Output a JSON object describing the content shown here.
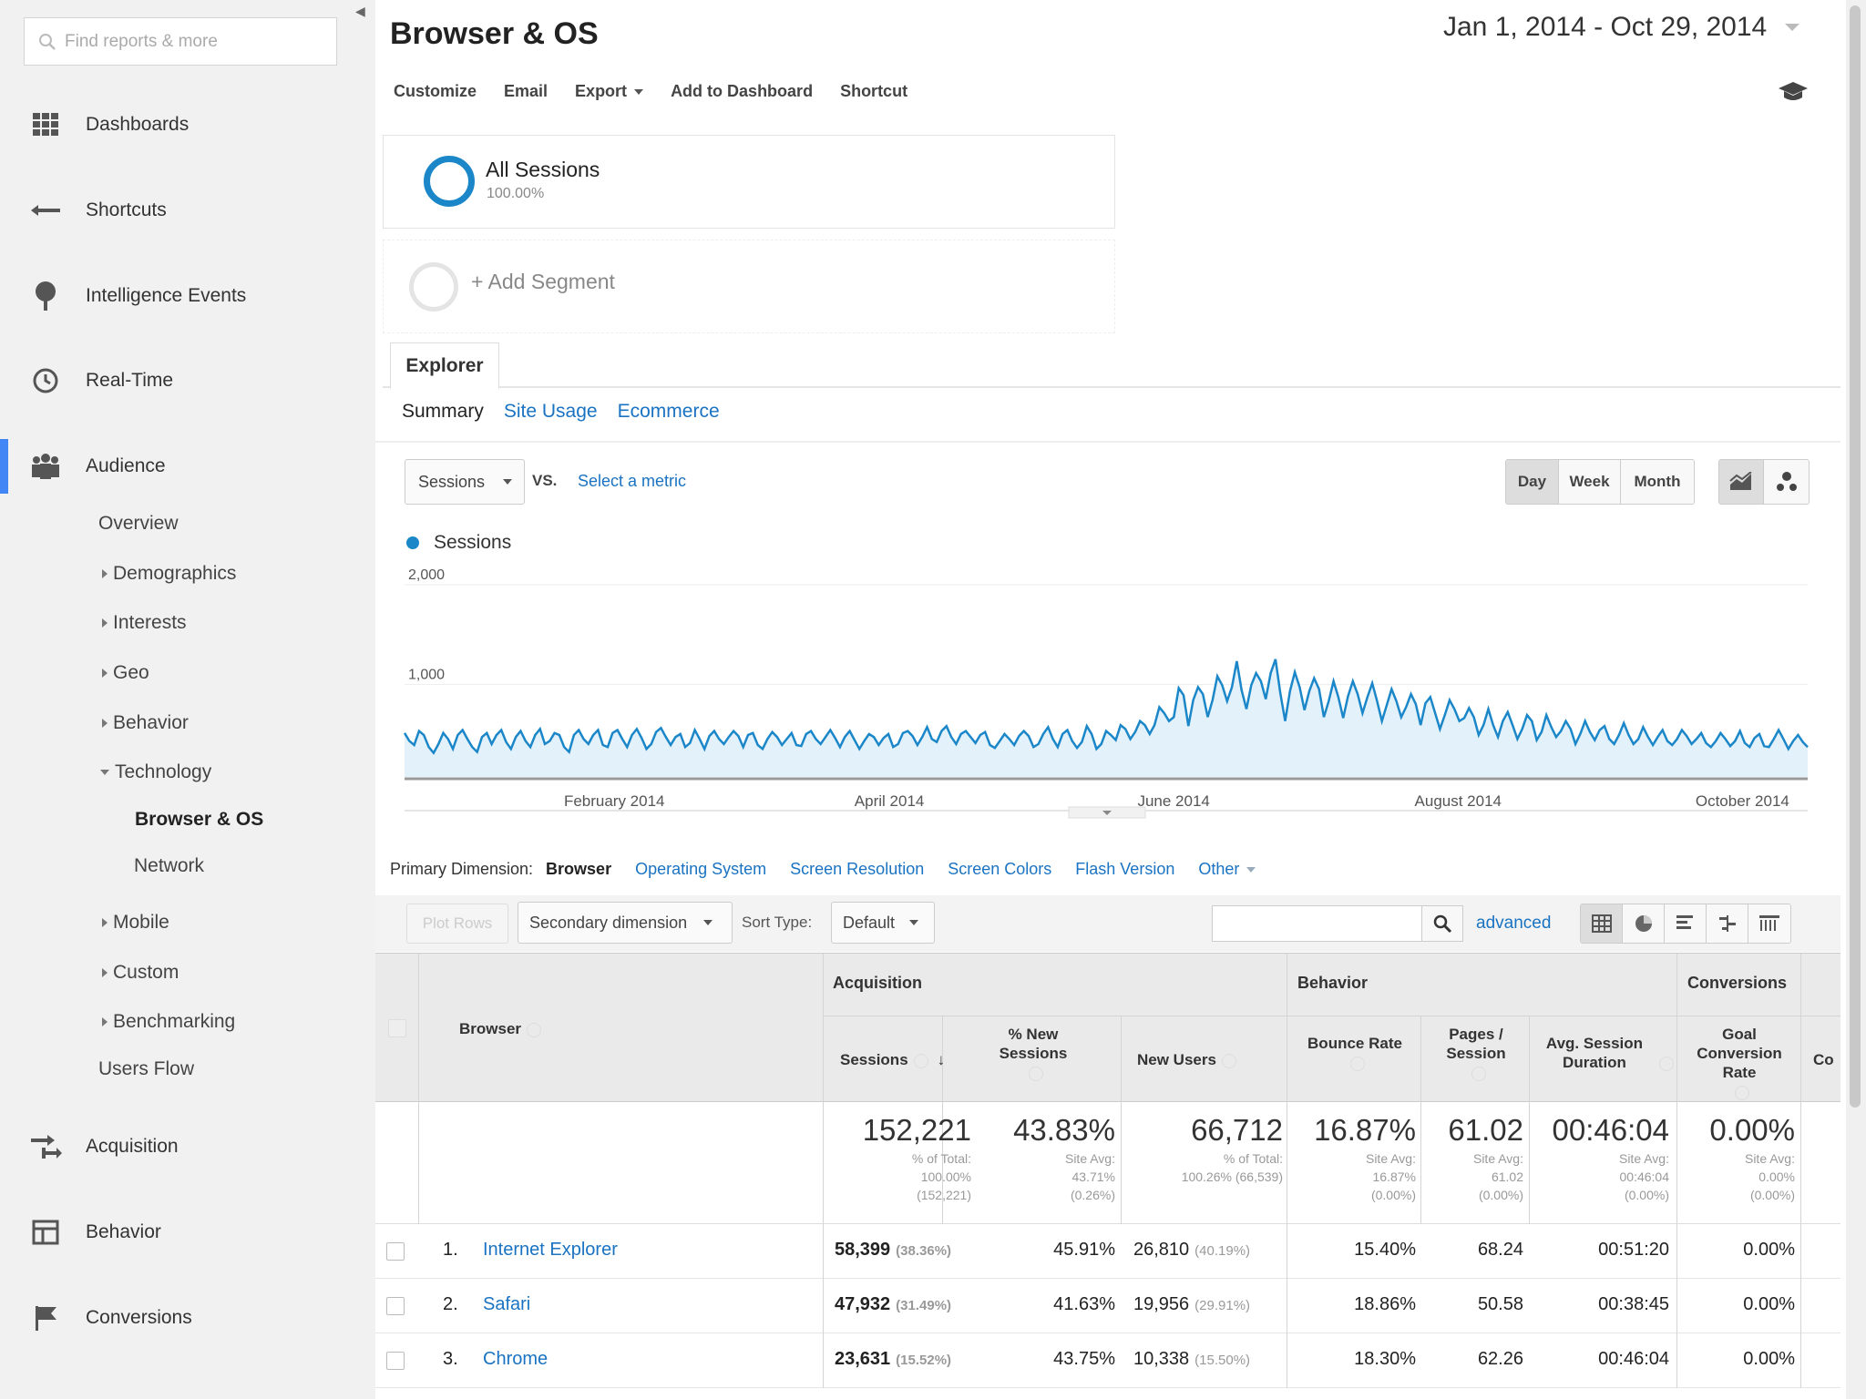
{
  "sidebar": {
    "search_placeholder": "Find reports & more",
    "nav": {
      "dashboards": "Dashboards",
      "shortcuts": "Shortcuts",
      "intelligence": "Intelligence Events",
      "realtime": "Real-Time",
      "audience": "Audience",
      "acquisition": "Acquisition",
      "behavior": "Behavior",
      "conversions": "Conversions"
    },
    "audience_items": {
      "overview": "Overview",
      "demographics": "Demographics",
      "interests": "Interests",
      "geo": "Geo",
      "behavior": "Behavior",
      "technology": "Technology",
      "browser_os": "Browser & OS",
      "network": "Network",
      "mobile": "Mobile",
      "custom": "Custom",
      "benchmarking": "Benchmarking",
      "users_flow": "Users Flow"
    }
  },
  "header": {
    "title": "Browser & OS",
    "date_range": "Jan 1, 2014 - Oct 29, 2014"
  },
  "toolbar": {
    "customize": "Customize",
    "email": "Email",
    "export": "Export",
    "add_dashboard": "Add to Dashboard",
    "shortcut": "Shortcut"
  },
  "segments": {
    "all_title": "All Sessions",
    "all_pct": "100.00%",
    "add": "+ Add Segment"
  },
  "tabs": {
    "explorer": "Explorer",
    "summary": "Summary",
    "site_usage": "Site Usage",
    "ecommerce": "Ecommerce"
  },
  "chart_controls": {
    "metric": "Sessions",
    "vs": "VS.",
    "select_metric": "Select a metric",
    "day": "Day",
    "week": "Week",
    "month": "Month"
  },
  "chart_data": {
    "type": "area",
    "series": [
      {
        "name": "Sessions",
        "color": "#1b87c9"
      }
    ],
    "y_ticks": [
      "2,000",
      "1,000"
    ],
    "ylim": [
      0,
      2000
    ],
    "x_labels": [
      "February 2014",
      "April 2014",
      "June 2014",
      "August 2014",
      "October 2014"
    ],
    "x_start": "2014-01-01",
    "x_end": "2014-10-29",
    "values": [
      440,
      360,
      320,
      460,
      420,
      300,
      240,
      330,
      440,
      380,
      280,
      420,
      470,
      380,
      300,
      250,
      400,
      440,
      330,
      420,
      470,
      350,
      280,
      400,
      460,
      360,
      300,
      420,
      480,
      330,
      360,
      440,
      420,
      300,
      250,
      420,
      470,
      380,
      330,
      420,
      470,
      320,
      300,
      440,
      470,
      380,
      300,
      420,
      480,
      390,
      280,
      330,
      450,
      490,
      400,
      320,
      400,
      430,
      300,
      340,
      470,
      380,
      280,
      410,
      460,
      380,
      330,
      400,
      460,
      410,
      300,
      420,
      440,
      320,
      280,
      380,
      450,
      400,
      320,
      380,
      440,
      320,
      310,
      430,
      460,
      380,
      330,
      400,
      470,
      390,
      300,
      400,
      460,
      370,
      280,
      360,
      430,
      400,
      320,
      390,
      430,
      300,
      330,
      440,
      460,
      410,
      320,
      400,
      500,
      380,
      350,
      460,
      510,
      400,
      330,
      430,
      460,
      400,
      340,
      420,
      450,
      320,
      290,
      360,
      430,
      380,
      320,
      410,
      460,
      410,
      300,
      330,
      430,
      500,
      380,
      300,
      430,
      470,
      360,
      290,
      350,
      510,
      430,
      280,
      330,
      460,
      420,
      370,
      520,
      480,
      380,
      450,
      560,
      520,
      430,
      520,
      700,
      640,
      560,
      600,
      890,
      820,
      510,
      770,
      900,
      830,
      600,
      770,
      1010,
      920,
      760,
      900,
      1160,
      870,
      680,
      920,
      1040,
      960,
      780,
      1040,
      1180,
      840,
      560,
      860,
      1050,
      900,
      670,
      860,
      990,
      880,
      600,
      760,
      960,
      800,
      590,
      810,
      960,
      830,
      640,
      800,
      940,
      760,
      560,
      720,
      880,
      760,
      600,
      700,
      830,
      730,
      520,
      740,
      800,
      640,
      480,
      620,
      770,
      680,
      560,
      590,
      690,
      600,
      420,
      520,
      680,
      520,
      400,
      560,
      650,
      520,
      380,
      480,
      620,
      560,
      370,
      450,
      620,
      500,
      400,
      460,
      560,
      480,
      330,
      430,
      560,
      450,
      370,
      470,
      510,
      380,
      330,
      420,
      540,
      420,
      330,
      380,
      500,
      400,
      320,
      400,
      470,
      360,
      320,
      380,
      470,
      410,
      330,
      380,
      440,
      340,
      300,
      360,
      440,
      380,
      310,
      360,
      460,
      340,
      300,
      390,
      430,
      310,
      300,
      380,
      470,
      380,
      280,
      360,
      420,
      350,
      300
    ]
  },
  "dimensions": {
    "label": "Primary Dimension:",
    "current": "Browser",
    "options": [
      "Operating System",
      "Screen Resolution",
      "Screen Colors",
      "Flash Version",
      "Other"
    ]
  },
  "table_controls": {
    "plot_rows": "Plot Rows",
    "secondary": "Secondary dimension",
    "sort_type_label": "Sort Type:",
    "sort_type": "Default",
    "advanced": "advanced"
  },
  "table": {
    "groups": {
      "acquisition": "Acquisition",
      "behavior": "Behavior",
      "conversions": "Conversions"
    },
    "headers": {
      "browser": "Browser",
      "sessions": "Sessions",
      "new_sessions": "% New Sessions",
      "new_users": "New Users",
      "bounce": "Bounce Rate",
      "pages": "Pages / Session",
      "duration": "Avg. Session Duration",
      "goal": "Goal Conversion Rate",
      "cut": "Co"
    },
    "totals": {
      "sessions": "152,221",
      "sessions_sub": "% of Total:\n100.00%\n(152,221)",
      "new_sessions": "43.83%",
      "new_sessions_sub": "Site Avg:\n43.71%\n(0.26%)",
      "new_users": "66,712",
      "new_users_sub": "% of Total:\n100.26% (66,539)",
      "bounce": "16.87%",
      "bounce_sub": "Site Avg:\n16.87%\n(0.00%)",
      "pages": "61.02",
      "pages_sub": "Site Avg:\n61.02\n(0.00%)",
      "duration": "00:46:04",
      "duration_sub": "Site Avg:\n00:46:04\n(0.00%)",
      "goal": "0.00%",
      "goal_sub": "Site Avg:\n0.00%\n(0.00%)"
    },
    "rows": [
      {
        "num": "1.",
        "browser": "Internet Explorer",
        "sessions": "58,399",
        "sessions_pct": "(38.36%)",
        "new_sessions": "45.91%",
        "new_users": "26,810",
        "new_users_pct": "(40.19%)",
        "bounce": "15.40%",
        "pages": "68.24",
        "duration": "00:51:20",
        "goal": "0.00%"
      },
      {
        "num": "2.",
        "browser": "Safari",
        "sessions": "47,932",
        "sessions_pct": "(31.49%)",
        "new_sessions": "41.63%",
        "new_users": "19,956",
        "new_users_pct": "(29.91%)",
        "bounce": "18.86%",
        "pages": "50.58",
        "duration": "00:38:45",
        "goal": "0.00%"
      },
      {
        "num": "3.",
        "browser": "Chrome",
        "sessions": "23,631",
        "sessions_pct": "(15.52%)",
        "new_sessions": "43.75%",
        "new_users": "10,338",
        "new_users_pct": "(15.50%)",
        "bounce": "18.30%",
        "pages": "62.26",
        "duration": "00:46:04",
        "goal": "0.00%"
      }
    ]
  }
}
